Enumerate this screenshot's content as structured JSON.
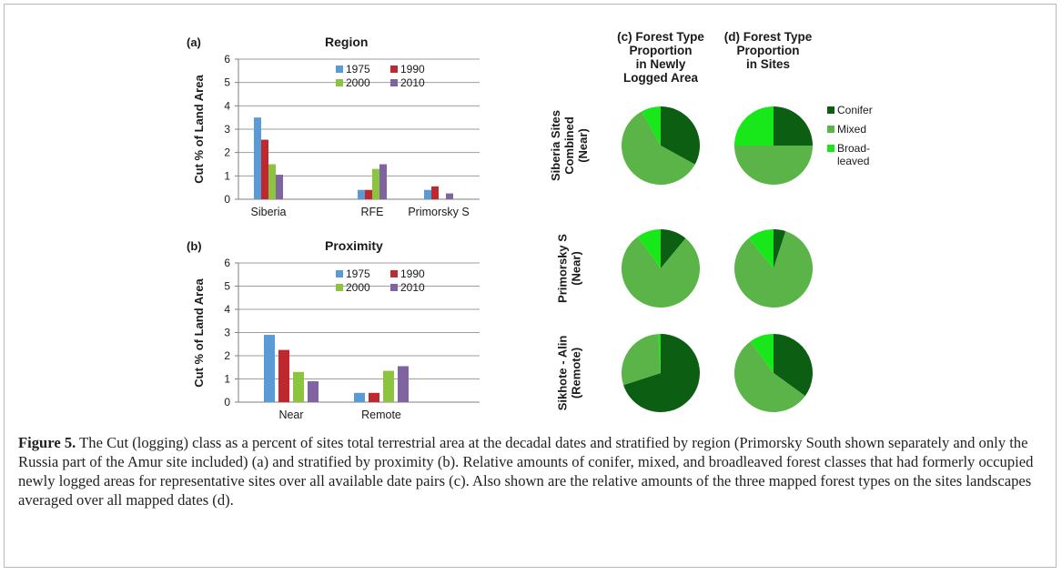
{
  "colors": {
    "s1975": "#5b9bd5",
    "s1990": "#c0282f",
    "s2000": "#8cc43f",
    "s2010": "#8064a2",
    "conifer": "#0b5e12",
    "mixed": "#5ab447",
    "broadleaved": "#18e81a",
    "grid": "#9e9e9e",
    "axis": "#7f7f7f"
  },
  "chart_data": [
    {
      "type": "bar",
      "panel": "(a)",
      "title": "Region",
      "ylabel": "Cut % of Land Area",
      "ylim": [
        0,
        6
      ],
      "yticks": [
        "0",
        "1",
        "2",
        "3",
        "4",
        "5",
        "6"
      ],
      "categories": [
        "Siberia",
        "RFE",
        "Primorsky S"
      ],
      "legend": "top-right",
      "series": [
        {
          "name": "1975",
          "values": [
            3.5,
            0.4,
            0.4
          ]
        },
        {
          "name": "1990",
          "values": [
            2.55,
            0.4,
            0.55
          ]
        },
        {
          "name": "2000",
          "values": [
            1.5,
            1.3,
            0.0
          ]
        },
        {
          "name": "2010",
          "values": [
            1.05,
            1.5,
            0.25
          ]
        }
      ]
    },
    {
      "type": "bar",
      "panel": "(b)",
      "title": "Proximity",
      "ylabel": "Cut % of Land Area",
      "ylim": [
        0,
        6
      ],
      "yticks": [
        "0",
        "1",
        "2",
        "3",
        "4",
        "5",
        "6"
      ],
      "categories": [
        "Near",
        "Remote"
      ],
      "legend": "top-right",
      "series": [
        {
          "name": "1975",
          "values": [
            2.9,
            0.4
          ]
        },
        {
          "name": "1990",
          "values": [
            2.25,
            0.4
          ]
        },
        {
          "name": "2000",
          "values": [
            1.3,
            1.35
          ]
        },
        {
          "name": "2010",
          "values": [
            0.9,
            1.55
          ]
        }
      ]
    },
    {
      "type": "pie",
      "panel": "(c)",
      "title_lines": [
        "(c) Forest Type",
        "Proportion",
        "in Newly",
        "Logged Area"
      ],
      "slice_order": [
        "Conifer",
        "Mixed",
        "Broad-leaved"
      ],
      "rows": [
        {
          "label_lines": [
            "Siberia Sites",
            "Combined",
            "(Near)"
          ],
          "values": [
            0.33,
            0.59,
            0.08
          ]
        },
        {
          "label_lines": [
            "Primorsky S",
            "(Near)"
          ],
          "values": [
            0.11,
            0.79,
            0.1
          ]
        },
        {
          "label_lines": [
            "Sikhote - Alin",
            "(Remote)"
          ],
          "values": [
            0.7,
            0.29,
            0.01
          ]
        }
      ]
    },
    {
      "type": "pie",
      "panel": "(d)",
      "title_lines": [
        "(d) Forest Type",
        "Proportion",
        "in Sites"
      ],
      "slice_order": [
        "Conifer",
        "Mixed",
        "Broad-leaved"
      ],
      "rows": [
        {
          "values": [
            0.25,
            0.5,
            0.25
          ]
        },
        {
          "values": [
            0.05,
            0.84,
            0.11
          ]
        },
        {
          "values": [
            0.35,
            0.55,
            0.1
          ]
        }
      ]
    }
  ],
  "pie_legend": {
    "items": [
      {
        "lines": [
          "Conifer"
        ],
        "color_key": "conifer"
      },
      {
        "lines": [
          "Mixed"
        ],
        "color_key": "mixed"
      },
      {
        "lines": [
          "Broad-",
          "leaved"
        ],
        "color_key": "broadleaved"
      }
    ]
  },
  "caption": {
    "label": "Figure 5.",
    "text": " The Cut (logging) class as a percent of sites total terrestrial area at the decadal dates and stratified by region (Primorsky South shown separately and only the Russia part of the Amur site included) (a) and stratified by proximity (b). Relative amounts of conifer, mixed, and broadleaved forest classes that had formerly occupied newly logged areas for representative sites over all available date pairs (c). Also shown are the relative amounts of the three mapped forest types on the sites landscapes averaged over all mapped dates (d)."
  }
}
